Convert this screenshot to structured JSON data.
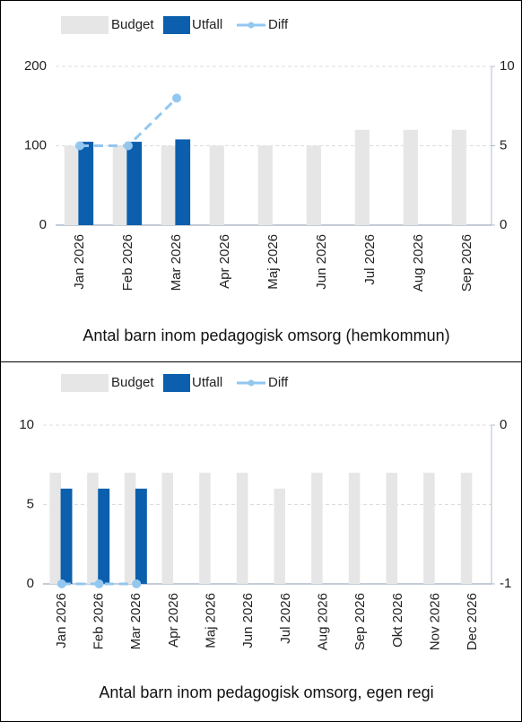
{
  "chart_data": [
    {
      "type": "bar",
      "title": "Antal barn inom pedagogisk omsorg (hemkommun)",
      "categories": [
        "Jan 2026",
        "Feb 2026",
        "Mar 2026",
        "Apr 2026",
        "Maj 2026",
        "Jun 2026",
        "Jul 2026",
        "Aug 2026",
        "Sep 2026"
      ],
      "series": [
        {
          "name": "Budget",
          "color": "#e6e6e6",
          "values": [
            100,
            100,
            100,
            100,
            100,
            100,
            120,
            120,
            120
          ]
        },
        {
          "name": "Utfall",
          "color": "#0b5fad",
          "values": [
            105,
            105,
            108,
            null,
            null,
            null,
            null,
            null,
            null
          ]
        },
        {
          "name": "Diff",
          "color": "#92c7f0",
          "type": "line",
          "axis": "y2",
          "values": [
            5,
            5,
            8,
            null,
            null,
            null,
            null,
            null,
            null
          ]
        }
      ],
      "ylim": [
        0,
        200
      ],
      "yticks": [
        0,
        100,
        200
      ],
      "y2lim": [
        0,
        10
      ],
      "y2ticks": [
        0,
        5,
        10
      ],
      "grid": true,
      "legend": "top"
    },
    {
      "type": "bar",
      "title": "Antal barn inom pedagogisk omsorg, egen regi",
      "categories": [
        "Jan 2026",
        "Feb 2026",
        "Mar 2026",
        "Apr 2026",
        "Maj 2026",
        "Jun 2026",
        "Jul 2026",
        "Aug 2026",
        "Sep 2026",
        "Okt 2026",
        "Nov 2026",
        "Dec 2026"
      ],
      "series": [
        {
          "name": "Budget",
          "color": "#e6e6e6",
          "values": [
            7,
            7,
            7,
            7,
            7,
            7,
            6,
            7,
            7,
            7,
            7,
            7
          ]
        },
        {
          "name": "Utfall",
          "color": "#0b5fad",
          "values": [
            6,
            6,
            6,
            null,
            null,
            null,
            null,
            null,
            null,
            null,
            null,
            null
          ]
        },
        {
          "name": "Diff",
          "color": "#92c7f0",
          "type": "line",
          "axis": "y2",
          "values": [
            -1,
            -1,
            -1,
            null,
            null,
            null,
            null,
            null,
            null,
            null,
            null,
            null
          ]
        }
      ],
      "ylim": [
        0,
        10
      ],
      "yticks": [
        0,
        5,
        10
      ],
      "y2lim": [
        -1,
        0
      ],
      "y2ticks": [
        -1,
        0
      ],
      "grid": true,
      "legend": "top"
    }
  ]
}
